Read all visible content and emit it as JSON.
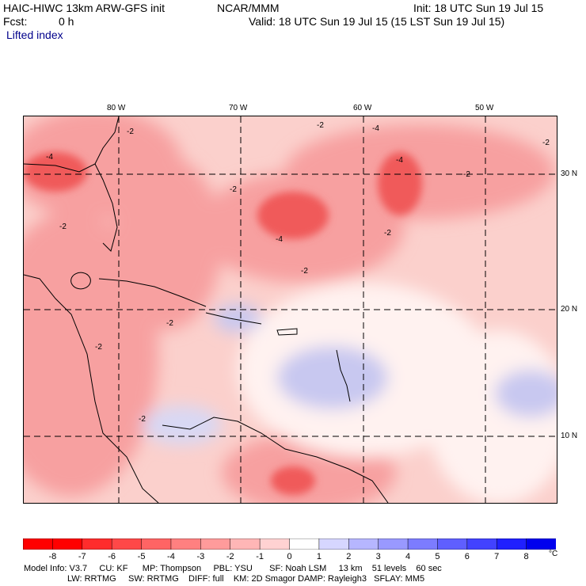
{
  "header": {
    "model_title": "HAIC-HIWC 13km ARW-GFS init",
    "institution": "NCAR/MMM",
    "init": "Init: 18 UTC Sun 19 Jul 15",
    "fcst_label": "Fcst:",
    "fcst_value": "0 h",
    "valid": "Valid: 18 UTC Sun 19 Jul 15 (15 LST Sun 19 Jul 15)",
    "field": "Lifted index"
  },
  "map": {
    "lon_labels": [
      "80 W",
      "70 W",
      "60 W",
      "50 W"
    ],
    "lat_labels": [
      "30 N",
      "20 N",
      "10 N"
    ],
    "contour_labels": [
      "-2",
      "-4"
    ],
    "colors": {
      "strong_neg": "#f05a5a",
      "mid_neg": "#f7a0a0",
      "weak_neg": "#fbd0cc",
      "neutral": "#fff2f0",
      "weak_pos": "#c8c8f0",
      "mid_pos": "#a0a0e8"
    }
  },
  "legend": {
    "ticks": [
      "-8",
      "-7",
      "-6",
      "-5",
      "-4",
      "-3",
      "-2",
      "-1",
      "0",
      "1",
      "2",
      "3",
      "4",
      "5",
      "6",
      "7",
      "8"
    ],
    "unit": "°C",
    "colors": [
      "#ff0000",
      "#ff2c2c",
      "#ff4848",
      "#ff6464",
      "#ff8080",
      "#ff9b9b",
      "#ffb6b6",
      "#ffd2d2",
      "#ffffff",
      "#d6d6ff",
      "#b6b6ff",
      "#9999ff",
      "#7c7cff",
      "#5f5fff",
      "#4242ff",
      "#2020ff",
      "#0000ee"
    ]
  },
  "footer": {
    "line1": "Model Info: V3.7     CU: KF      MP: Thompson     PBL: YSU       SF: Noah LSM     13 km    51 levels    60 sec",
    "line2": "                  LW: RRTMG     SW: RRTMG    DIFF: full    KM: 2D Smagor DAMP: Rayleigh3   SFLAY: MM5"
  }
}
